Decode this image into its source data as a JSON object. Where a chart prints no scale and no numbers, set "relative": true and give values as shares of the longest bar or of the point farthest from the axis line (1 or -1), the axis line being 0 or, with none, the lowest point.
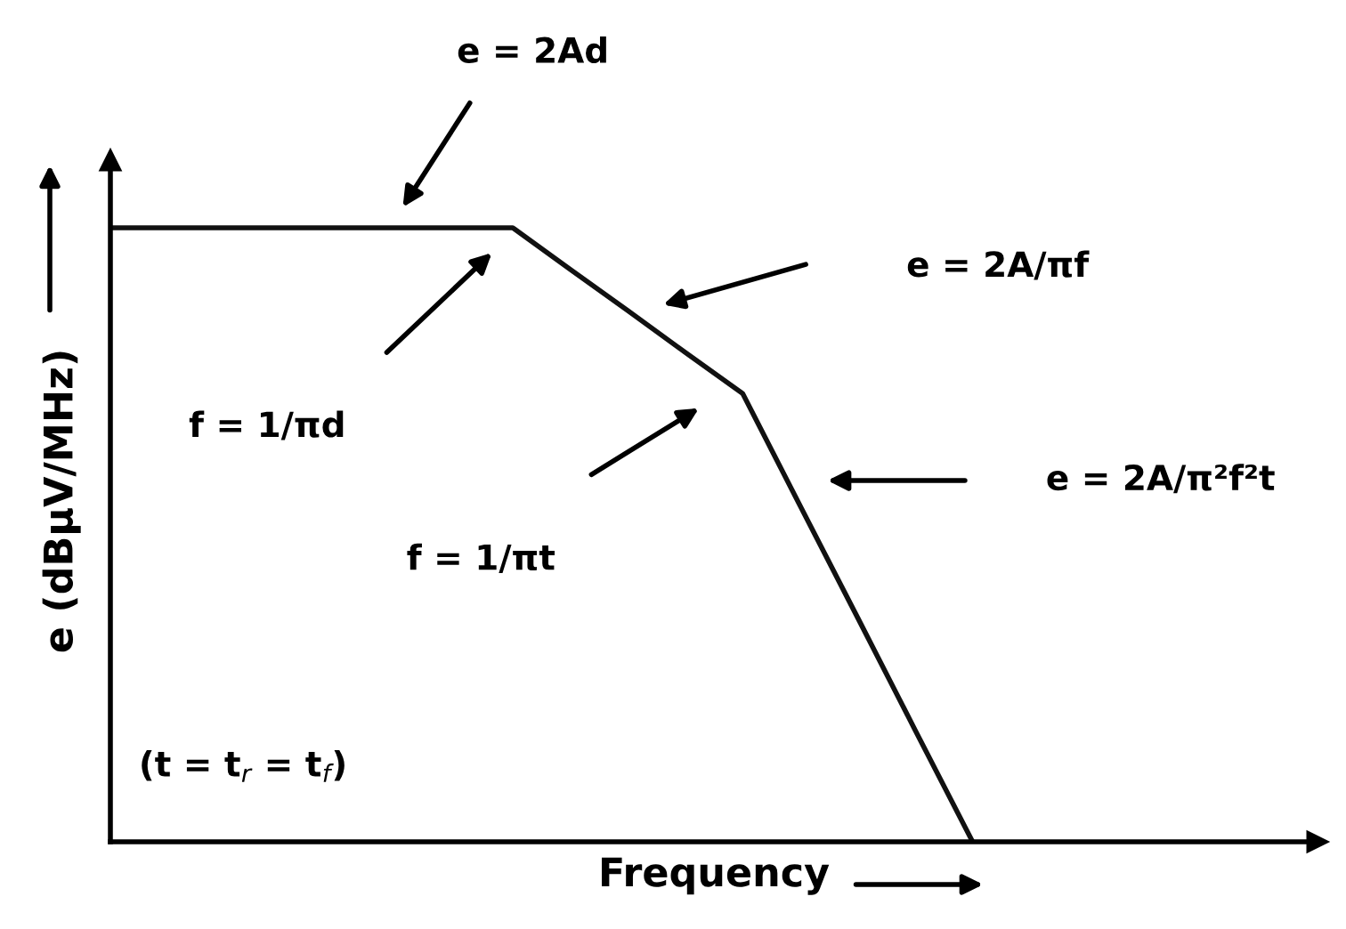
{
  "chart_data": {
    "type": "line",
    "relative": true,
    "xlabel": "Frequency",
    "ylabel": "e (dBμV/MHz)",
    "categories": [
      null,
      null,
      null,
      null,
      null,
      null,
      null,
      null,
      null,
      null,
      null,
      null,
      null,
      null,
      null,
      null,
      null,
      null,
      null,
      null,
      null,
      null
    ],
    "series": [
      {
        "color": "#111111",
        "values": [
          1,
          1,
          1,
          1,
          1,
          1,
          1,
          1,
          0.932,
          0.865,
          0.797,
          0.73,
          0.547,
          0.365,
          0.182,
          0,
          null,
          null,
          null,
          null,
          null,
          null
        ]
      }
    ],
    "tick_labels": false,
    "marker": "none",
    "line_style": "solid",
    "annotations": [
      "e = 2Ad",
      "f = 1/πd",
      "e = 2A/πf",
      "f = 1/πt",
      "e = 2A/π²f²t",
      "(t = t$_{r}$ = t$_{f}$)"
    ]
  }
}
